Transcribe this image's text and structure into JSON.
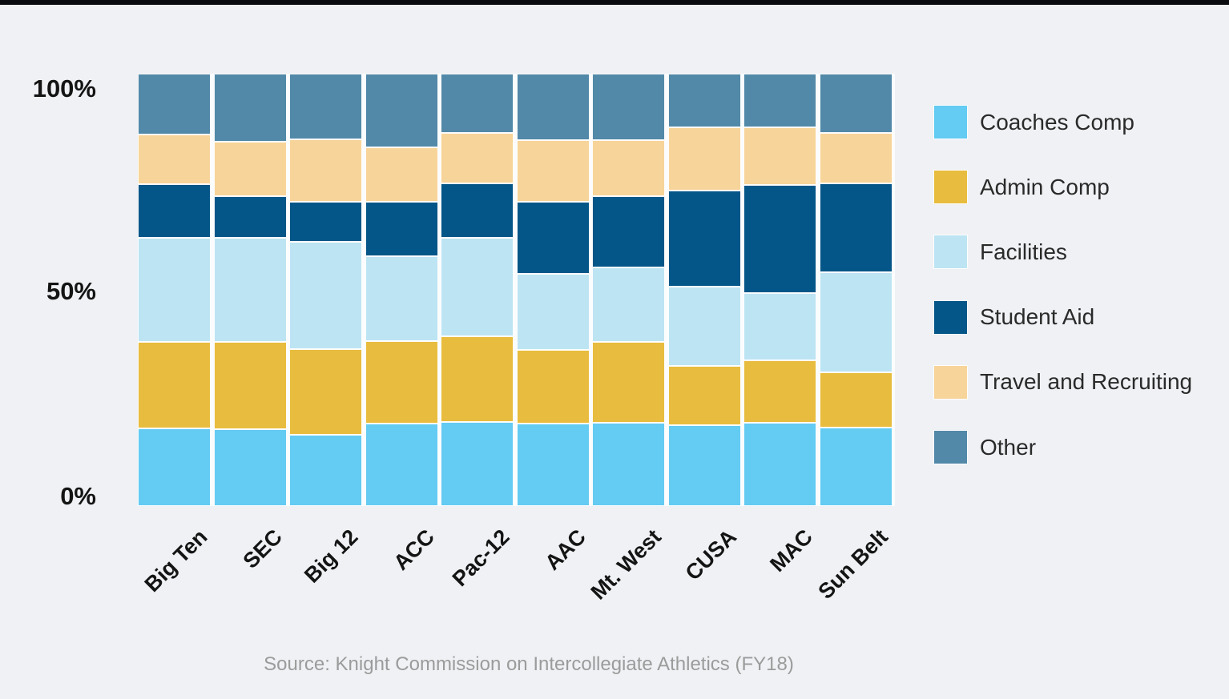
{
  "page": {
    "background": "#eff1f4",
    "top_bar_color": "#0a0b0e",
    "source_note": "Source: Knight Commission on Intercollegiate Athletics (FY18)"
  },
  "chart_data": {
    "type": "bar",
    "stacked": true,
    "percent": true,
    "title": "",
    "xlabel": "",
    "ylabel": "",
    "categories": [
      "Big Ten",
      "SEC",
      "Big 12",
      "ACC",
      "Pac-12",
      "AAC",
      "Mt. West",
      "CUSA",
      "MAC",
      "Sun Belt"
    ],
    "series": [
      {
        "name": "Coaches Comp",
        "color": "#64cbf3",
        "values": [
          17.9,
          17.8,
          16.4,
          19.2,
          19.5,
          19.2,
          19.4,
          18.8,
          19.4,
          18.1
        ]
      },
      {
        "name": "Admin Comp",
        "color": "#e8bc3e",
        "values": [
          20.1,
          20.2,
          20.0,
          19.1,
          19.9,
          17.0,
          18.6,
          13.6,
          14.3,
          12.8
        ]
      },
      {
        "name": "Facilities",
        "color": "#bde4f3",
        "values": [
          24.4,
          24.3,
          24.9,
          19.7,
          23.0,
          17.6,
          17.3,
          18.3,
          15.6,
          23.3
        ]
      },
      {
        "name": "Student Aid",
        "color": "#055688",
        "values": [
          12.3,
          9.4,
          9.2,
          12.4,
          12.4,
          16.6,
          16.5,
          22.5,
          25.2,
          20.6
        ]
      },
      {
        "name": "Travel and Recruiting",
        "color": "#f7d499",
        "values": [
          11.3,
          12.6,
          14.4,
          12.5,
          11.5,
          14.2,
          12.9,
          14.4,
          13.1,
          11.6
        ]
      },
      {
        "name": "Other",
        "color": "#5289a8",
        "values": [
          14.0,
          15.7,
          15.1,
          17.1,
          13.7,
          15.4,
          15.3,
          12.4,
          12.4,
          13.6
        ]
      }
    ],
    "yticks": [
      "100%",
      "50%",
      "0%"
    ],
    "ylim": [
      0,
      100
    ],
    "grid": false,
    "legend_position": "right"
  }
}
